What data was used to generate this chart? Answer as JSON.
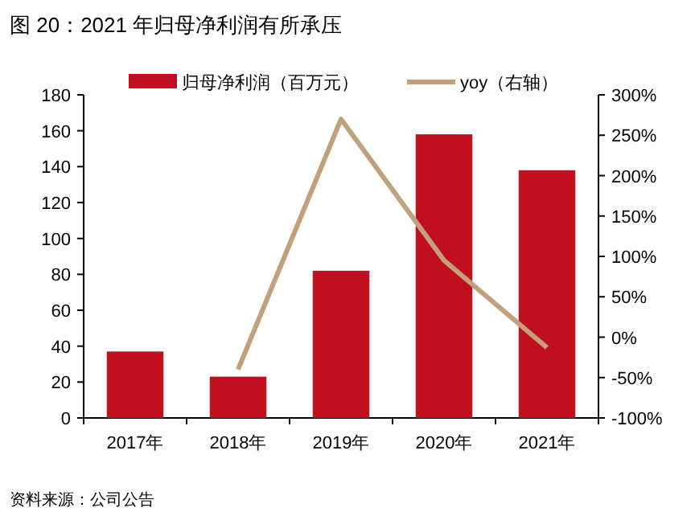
{
  "chart_data": {
    "type": "bar",
    "title": "图 20：2021 年归母净利润有所承压",
    "categories": [
      "2017年",
      "2018年",
      "2019年",
      "2020年",
      "2021年"
    ],
    "series": [
      {
        "name": "归母净利润（百万元）",
        "color": "#c00f1e",
        "values": [
          37,
          23,
          82,
          158,
          138
        ]
      },
      {
        "name": "yoy（右轴）",
        "type": "line",
        "axis": "y2",
        "color": "#c2a07c",
        "values": [
          null,
          -40,
          270,
          95,
          -13
        ]
      }
    ],
    "ylim": [
      0,
      180
    ],
    "yticks": [
      0,
      20,
      40,
      60,
      80,
      100,
      120,
      140,
      160,
      180
    ],
    "y2lim": [
      -100,
      300
    ],
    "y2ticks": [
      {
        "value": -100,
        "label": "-100%"
      },
      {
        "value": -50,
        "label": "-50%"
      },
      {
        "value": 0,
        "label": "0%"
      },
      {
        "value": 50,
        "label": "50%"
      },
      {
        "value": 100,
        "label": "100%"
      },
      {
        "value": 150,
        "label": "150%"
      },
      {
        "value": 200,
        "label": "200%"
      },
      {
        "value": 250,
        "label": "250%"
      },
      {
        "value": 300,
        "label": "300%"
      }
    ],
    "legend": "top",
    "grid": false,
    "annotations": [
      "资料来源：公司公告"
    ]
  }
}
